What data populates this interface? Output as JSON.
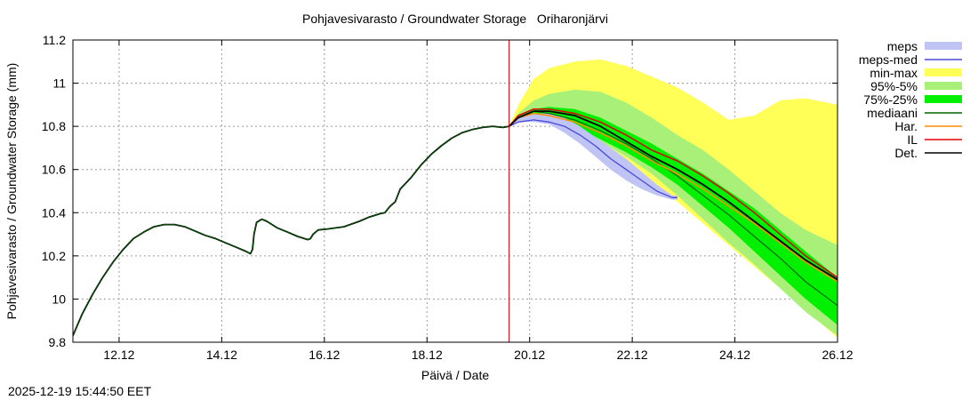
{
  "chart_data": {
    "type": "area",
    "title": "Pohjavesivarasto / Groundwater Storage   Oriharonjärvi",
    "xlabel": "Päivä / Date",
    "ylabel": "Pohjavesivarasto / Groundwater Storage (mm)",
    "timestamp": "2025-12-19 15:44:50 EET",
    "xlim": [
      11.22,
      26.12
    ],
    "ylim": [
      9.8,
      11.2
    ],
    "x_ticks": [
      {
        "x": 12.12,
        "label": "12.12"
      },
      {
        "x": 14.12,
        "label": "14.12"
      },
      {
        "x": 16.12,
        "label": "16.12"
      },
      {
        "x": 18.12,
        "label": "18.12"
      },
      {
        "x": 20.12,
        "label": "20.12"
      },
      {
        "x": 22.12,
        "label": "22.12"
      },
      {
        "x": 24.12,
        "label": "24.12"
      },
      {
        "x": 26.12,
        "label": "26.12"
      }
    ],
    "y_ticks": [
      {
        "y": 9.8,
        "label": "9.8"
      },
      {
        "y": 10.0,
        "label": "10"
      },
      {
        "y": 10.2,
        "label": "10.2"
      },
      {
        "y": 10.4,
        "label": "10.4"
      },
      {
        "y": 10.6,
        "label": "10.6"
      },
      {
        "y": 10.8,
        "label": "10.8"
      },
      {
        "y": 11.0,
        "label": "11"
      },
      {
        "y": 11.2,
        "label": "11.2"
      }
    ],
    "grid": true,
    "legend_position": "outside-right",
    "forecast_start": 19.72,
    "colors": {
      "meps": "#c0c4f4",
      "meps_med": "#4848d8",
      "min_max": "#ffff58",
      "p95_5": "#a8f078",
      "p75_25": "#00f000",
      "mediaani": "#006400",
      "har": "#ff8c00",
      "il": "#e00000",
      "det": "#000000",
      "now_line": "#cc0000"
    },
    "legend": [
      {
        "key": "meps",
        "label": "meps",
        "style": "band"
      },
      {
        "key": "meps_med",
        "label": "meps-med",
        "style": "line"
      },
      {
        "key": "min_max",
        "label": "min-max",
        "style": "band"
      },
      {
        "key": "p95_5",
        "label": "95%-5%",
        "style": "band"
      },
      {
        "key": "p75_25",
        "label": "75%-25%",
        "style": "band"
      },
      {
        "key": "mediaani",
        "label": "mediaani",
        "style": "line"
      },
      {
        "key": "har",
        "label": "Har.",
        "style": "line"
      },
      {
        "key": "il",
        "label": "IL",
        "style": "line"
      },
      {
        "key": "det",
        "label": "Det.",
        "style": "line"
      }
    ],
    "observed": {
      "x": [
        11.22,
        11.4,
        11.6,
        11.8,
        12.0,
        12.2,
        12.4,
        12.6,
        12.8,
        13.0,
        13.2,
        13.4,
        13.6,
        13.8,
        14.0,
        14.2,
        14.4,
        14.6,
        14.68,
        14.72,
        14.75,
        14.8,
        14.9,
        15.0,
        15.2,
        15.4,
        15.6,
        15.8,
        15.85,
        15.9,
        16.0,
        16.2,
        16.5,
        16.8,
        17.0,
        17.2,
        17.3,
        17.4,
        17.5,
        17.6,
        17.8,
        18.0,
        18.2,
        18.4,
        18.6,
        18.8,
        19.0,
        19.2,
        19.4,
        19.6,
        19.72
      ],
      "y": [
        9.83,
        9.93,
        10.02,
        10.1,
        10.17,
        10.23,
        10.28,
        10.31,
        10.335,
        10.345,
        10.345,
        10.335,
        10.315,
        10.295,
        10.28,
        10.26,
        10.24,
        10.22,
        10.21,
        10.23,
        10.3,
        10.355,
        10.37,
        10.36,
        10.33,
        10.31,
        10.29,
        10.275,
        10.28,
        10.3,
        10.32,
        10.325,
        10.335,
        10.36,
        10.38,
        10.395,
        10.4,
        10.43,
        10.45,
        10.51,
        10.56,
        10.62,
        10.67,
        10.71,
        10.745,
        10.77,
        10.785,
        10.795,
        10.8,
        10.795,
        10.8
      ]
    },
    "forecast": {
      "x": [
        19.72,
        19.9,
        20.2,
        20.5,
        21.0,
        21.5,
        22.0,
        22.5,
        23.0,
        23.5,
        24.0,
        24.5,
        25.0,
        25.5,
        26.12
      ],
      "min_max_upper": [
        10.8,
        10.9,
        11.02,
        11.07,
        11.1,
        11.11,
        11.08,
        11.03,
        10.98,
        10.91,
        10.83,
        10.85,
        10.92,
        10.93,
        10.9
      ],
      "min_max_lower": [
        10.8,
        10.83,
        10.84,
        10.83,
        10.79,
        10.72,
        10.63,
        10.55,
        10.45,
        10.35,
        10.25,
        10.15,
        10.05,
        9.95,
        9.82
      ],
      "p95_5_upper": [
        10.8,
        10.86,
        10.92,
        10.95,
        10.97,
        10.96,
        10.91,
        10.84,
        10.76,
        10.69,
        10.6,
        10.5,
        10.4,
        10.32,
        10.25
      ],
      "p95_5_lower": [
        10.8,
        10.84,
        10.86,
        10.85,
        10.8,
        10.73,
        10.66,
        10.58,
        10.48,
        10.37,
        10.26,
        10.16,
        10.05,
        9.94,
        9.83
      ],
      "p75_25_upper": [
        10.8,
        10.85,
        10.88,
        10.89,
        10.88,
        10.84,
        10.78,
        10.72,
        10.65,
        10.58,
        10.5,
        10.42,
        10.32,
        10.22,
        10.1
      ],
      "p75_25_lower": [
        10.8,
        10.84,
        10.86,
        10.85,
        10.8,
        10.74,
        10.68,
        10.61,
        10.53,
        10.43,
        10.33,
        10.22,
        10.11,
        10.0,
        9.88
      ],
      "mediaani": [
        10.8,
        10.84,
        10.87,
        10.86,
        10.83,
        10.78,
        10.72,
        10.65,
        10.57,
        10.48,
        10.39,
        10.29,
        10.19,
        10.08,
        9.97
      ],
      "det": [
        10.8,
        10.84,
        10.87,
        10.87,
        10.85,
        10.8,
        10.73,
        10.66,
        10.6,
        10.53,
        10.45,
        10.36,
        10.27,
        10.18,
        10.09
      ],
      "il": [
        10.8,
        10.85,
        10.88,
        10.88,
        10.86,
        10.82,
        10.76,
        10.69,
        10.64,
        10.57,
        10.49,
        10.4,
        10.3,
        10.2,
        10.1
      ],
      "har": [
        10.8,
        10.84,
        10.86,
        10.85,
        10.82,
        10.77,
        10.71,
        10.64,
        10.58,
        10.51,
        10.43,
        10.35,
        10.26,
        10.17,
        10.08
      ]
    },
    "meps": {
      "x": [
        19.72,
        19.9,
        20.2,
        20.5,
        20.8,
        21.1,
        21.4,
        21.7,
        22.0,
        22.3,
        22.6,
        22.9,
        23.0
      ],
      "upper": [
        10.8,
        10.84,
        10.86,
        10.86,
        10.84,
        10.8,
        10.75,
        10.7,
        10.65,
        10.59,
        10.53,
        10.48,
        10.48
      ],
      "lower": [
        10.8,
        10.82,
        10.82,
        10.81,
        10.77,
        10.72,
        10.66,
        10.6,
        10.55,
        10.51,
        10.48,
        10.46,
        10.46
      ],
      "median": [
        10.8,
        10.82,
        10.83,
        10.82,
        10.8,
        10.76,
        10.71,
        10.65,
        10.6,
        10.55,
        10.5,
        10.47,
        10.47
      ]
    }
  }
}
